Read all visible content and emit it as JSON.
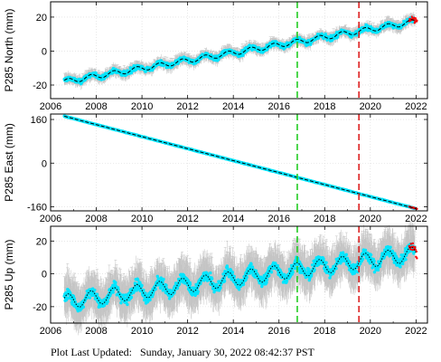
{
  "colors": {
    "scatter": "#00e5ff",
    "error_bars": "#b8b8b8",
    "model_line": "#000000",
    "marker_green": "#22cc22",
    "marker_red": "#dd2222",
    "recent_points": "#ff0000",
    "frame": "#000000"
  },
  "footer": {
    "label": "Plot Last Updated:",
    "timestamp": "Sunday, January 30, 2022 08:42:37 PST"
  },
  "chart_data": [
    {
      "type": "scatter",
      "ylabel": "P285 North (mm)",
      "xlim": [
        2006,
        2022.5
      ],
      "ylim": [
        -28,
        29
      ],
      "x_ticks": [
        2006,
        2008,
        2010,
        2012,
        2014,
        2016,
        2018,
        2020,
        2022
      ],
      "y_ticks": [
        -20,
        0,
        20
      ],
      "grid": true,
      "vertical_markers": [
        {
          "x": 2016.8,
          "color": "green",
          "style": "dashed"
        },
        {
          "x": 2019.5,
          "color": "red",
          "style": "dashed"
        }
      ],
      "model": {
        "start_x": 2006.6,
        "start_y": -18,
        "slope_per_year": 2.3,
        "seasonal_amplitude": 1.5
      },
      "scatter_half_width": 2.5,
      "error_bar_half_height": 3,
      "series": [
        {
          "x": [
            2006.6,
            2008,
            2010,
            2012,
            2014,
            2016,
            2018,
            2020,
            2022
          ],
          "y": [
            -18,
            -14,
            -11,
            -7,
            -3,
            3,
            9,
            13,
            18
          ]
        }
      ]
    },
    {
      "type": "scatter",
      "ylabel": "P285 East (mm)",
      "xlim": [
        2006,
        2022.5
      ],
      "ylim": [
        -175,
        180
      ],
      "x_ticks": [
        2006,
        2008,
        2010,
        2012,
        2014,
        2016,
        2018,
        2020,
        2022
      ],
      "y_ticks": [
        -160,
        0,
        160
      ],
      "grid": true,
      "vertical_markers": [
        {
          "x": 2016.8,
          "color": "green",
          "style": "dashed"
        },
        {
          "x": 2019.5,
          "color": "red",
          "style": "dashed"
        }
      ],
      "model": {
        "start_x": 2006.6,
        "start_y": 172,
        "slope_per_year": -22,
        "seasonal_amplitude": 0
      },
      "scatter_half_width": 2,
      "error_bar_half_height": 2,
      "series": [
        {
          "x": [
            2006.6,
            2008,
            2010,
            2012,
            2014,
            2016,
            2018,
            2020,
            2022
          ],
          "y": [
            172,
            141,
            97,
            53,
            9,
            -35,
            -79,
            -123,
            -169
          ]
        }
      ]
    },
    {
      "type": "scatter",
      "ylabel": "P285 Up (mm)",
      "xlim": [
        2006,
        2022.5
      ],
      "ylim": [
        -30,
        29
      ],
      "x_ticks": [
        2006,
        2008,
        2010,
        2012,
        2014,
        2016,
        2018,
        2020,
        2022
      ],
      "y_ticks": [
        -20,
        0,
        20
      ],
      "grid": true,
      "vertical_markers": [
        {
          "x": 2016.8,
          "color": "green",
          "style": "dashed"
        },
        {
          "x": 2019.5,
          "color": "red",
          "style": "dashed"
        }
      ],
      "model": {
        "start_x": 2006.6,
        "start_y": -17,
        "slope_per_year": 1.9,
        "seasonal_amplitude": 4.5
      },
      "scatter_half_width": 6,
      "error_bar_half_height": 12,
      "series": [
        {
          "x": [
            2006.6,
            2008,
            2010,
            2012,
            2014,
            2016,
            2018,
            2020,
            2022
          ],
          "y": [
            -15,
            -12,
            -9,
            -5,
            -1,
            3,
            6,
            10,
            15
          ]
        }
      ]
    }
  ]
}
